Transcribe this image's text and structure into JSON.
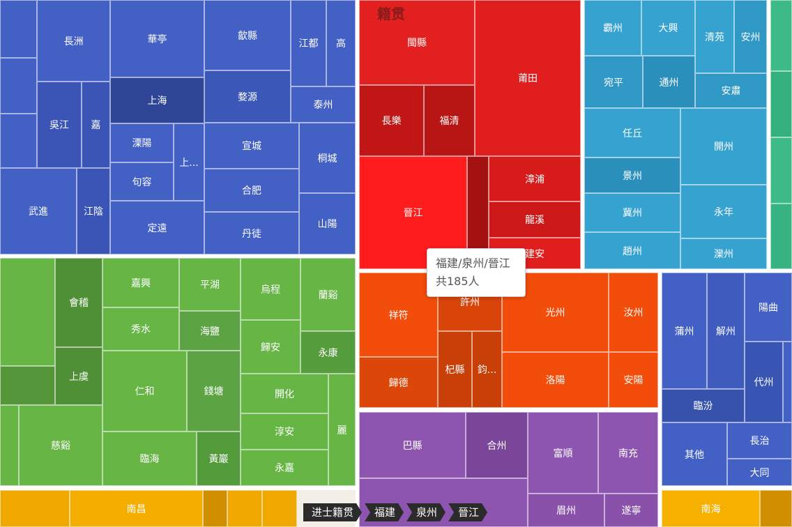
{
  "chart_data": {
    "type": "treemap",
    "title": "",
    "root_header": "籍贯",
    "groups": [
      {
        "name": "blue-east",
        "color": "#4360c4",
        "items": [
          "長洲",
          "華亭",
          "歙縣",
          "江都",
          "高",
          "吳江",
          "嘉",
          "上海",
          "婺源",
          "泰州",
          "溧陽",
          "上...",
          "宣城",
          "桐城",
          "句容",
          "合肥",
          "武進",
          "江陰",
          "定遠",
          "丹徒",
          "山陽"
        ]
      },
      {
        "name": "fujian",
        "color": "#e01e1e",
        "items": [
          "閩縣",
          "莆田",
          "長樂",
          "福清",
          "漳浦",
          "晉江",
          "龍溪",
          "建安"
        ]
      },
      {
        "name": "hebei",
        "color": "#36a2cf",
        "items": [
          "霸州",
          "大興",
          "清苑",
          "安州",
          "宛平",
          "通州",
          "安肅",
          "任丘",
          "開州",
          "景州",
          "冀州",
          "永年",
          "趙州",
          "灤州"
        ]
      },
      {
        "name": "zhejiang",
        "color": "#66b545",
        "items": [
          "會稽",
          "嘉興",
          "平湖",
          "烏程",
          "蘭谿",
          "秀水",
          "海鹽",
          "歸安",
          "永康",
          "上虞",
          "仁和",
          "錢塘",
          "開化",
          "慈谿",
          "淳安",
          "麗",
          "臨海",
          "黃巖",
          "永嘉"
        ]
      },
      {
        "name": "henan",
        "color": "#f24d0a",
        "items": [
          "祥符",
          "許州",
          "光州",
          "汝州",
          "杞縣",
          "鈞...",
          "洛陽",
          "安陽",
          "歸德"
        ]
      },
      {
        "name": "shanxi",
        "color": "#4360c4",
        "items": [
          "陽曲",
          "蒲州",
          "解州",
          "代州",
          "臨汾",
          "長治",
          "其他",
          "大同"
        ]
      },
      {
        "name": "sichuan",
        "color": "#8e55b0",
        "items": [
          "巴縣",
          "合州",
          "富順",
          "南充",
          "眉州",
          "遂寧"
        ]
      },
      {
        "name": "yellow",
        "color": "#f0a800",
        "items": [
          "南昌",
          "南海"
        ]
      }
    ]
  },
  "tooltip": {
    "line1": "福建/泉州/晉江",
    "line2": "共185人"
  },
  "breadcrumb": [
    "进士籍贯",
    "福建",
    "泉州",
    "晉江"
  ]
}
